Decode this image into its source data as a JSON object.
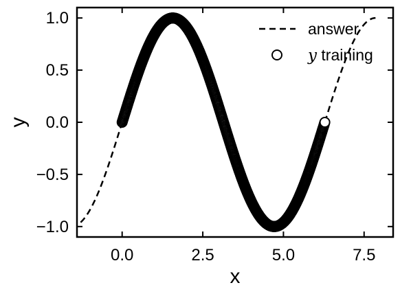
{
  "chart_data": {
    "type": "scatter",
    "xlabel": "x",
    "ylabel": "y",
    "xlim": [
      -1.4,
      8.4
    ],
    "ylim": [
      -1.1,
      1.1
    ],
    "xticks": [
      0.0,
      2.5,
      5.0,
      7.5
    ],
    "yticks": [
      -1.0,
      -0.5,
      0.0,
      0.5,
      1.0
    ],
    "xtick_labels": [
      "0.0",
      "2.5",
      "5.0",
      "7.5"
    ],
    "ytick_labels": [
      "−1.0",
      "−0.5",
      "0.0",
      "0.5",
      "1.0"
    ],
    "grid": false,
    "legend_position": "top-right",
    "series": [
      {
        "name": "answer",
        "style": "dashed-line",
        "color": "#000000",
        "x": [
          -1.571,
          -1.3,
          -1.0,
          -0.7,
          -0.4,
          0.0,
          0.5,
          1.0,
          1.571,
          2.0,
          2.5,
          3.0,
          3.5,
          4.0,
          4.712,
          5.2,
          5.7,
          6.2,
          6.6,
          7.0,
          7.4,
          7.854
        ],
        "y": [
          -1.0,
          -0.964,
          -0.841,
          -0.644,
          -0.389,
          0.0,
          0.479,
          0.841,
          1.0,
          0.909,
          0.598,
          0.141,
          -0.351,
          -0.757,
          -1.0,
          -0.883,
          -0.551,
          -0.083,
          0.312,
          0.657,
          0.899,
          1.0
        ]
      },
      {
        "name_prefix": "y",
        "name_suffix": " training",
        "style": "open-circle-markers",
        "color": "#000000",
        "x": [
          0.0,
          6.283
        ],
        "y": [
          0.0,
          0.0
        ],
        "dense_function": "sin",
        "dense_x_range": [
          0.0,
          6.283
        ]
      }
    ]
  }
}
